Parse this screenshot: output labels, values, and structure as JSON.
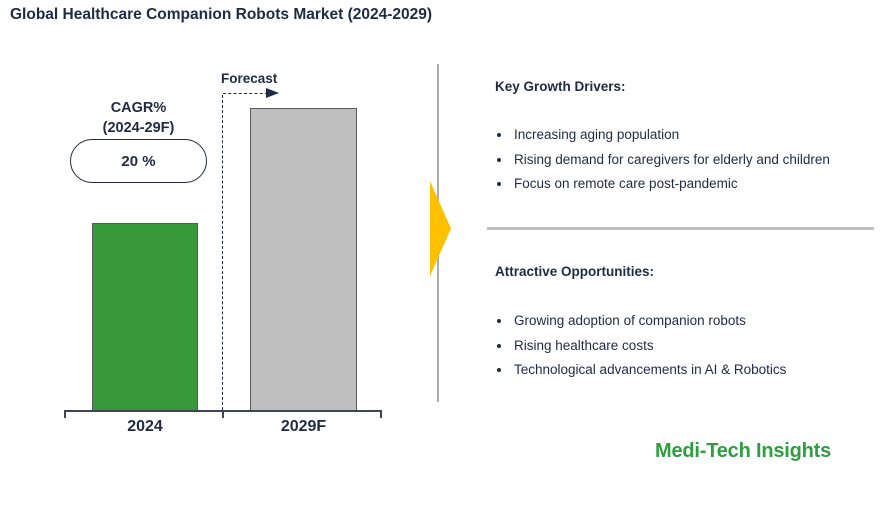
{
  "title": "Global Healthcare Companion Robots Market (2024-2029)",
  "chart_data": {
    "type": "bar",
    "title": "Global Healthcare Companion Robots Market (2024-2029)",
    "categories": [
      "2024",
      "2029F"
    ],
    "values": [
      62,
      100
    ],
    "value_note": "relative bar heights; chart shows no numeric value axis or gridlines",
    "bar_colors": [
      "#38993B",
      "#BFBFBF"
    ],
    "xlabel": "",
    "ylabel": "",
    "grid": false,
    "legend": "none",
    "annotations": {
      "cagr_line1": "CAGR%",
      "cagr_line2": "(2024-29F)",
      "cagr_value": "20 %",
      "forecast": "Forecast"
    }
  },
  "panel": {
    "sections": [
      {
        "heading": "Key Growth Drivers:",
        "bullets": [
          "Increasing aging population",
          "Rising demand for caregivers for elderly and children",
          "Focus on remote care post-pandemic"
        ]
      },
      {
        "heading": "Attractive Opportunities:",
        "bullets": [
          "Growing adoption of companion robots",
          "Rising healthcare costs",
          "Technological advancements in AI & Robotics"
        ]
      }
    ]
  },
  "branding": {
    "logo_text": "Medi-Tech Insights"
  },
  "colors": {
    "text_navy": "#1F2A44",
    "bar_green": "#38993B",
    "bar_gray": "#BFBFBF",
    "axis": "#3F4458",
    "flow_arrow_yellow": "#FFC000",
    "divider_gray": "#ABABAB",
    "section_divider_gray": "#BFBFBF",
    "logo_green": "#2E9E41"
  }
}
